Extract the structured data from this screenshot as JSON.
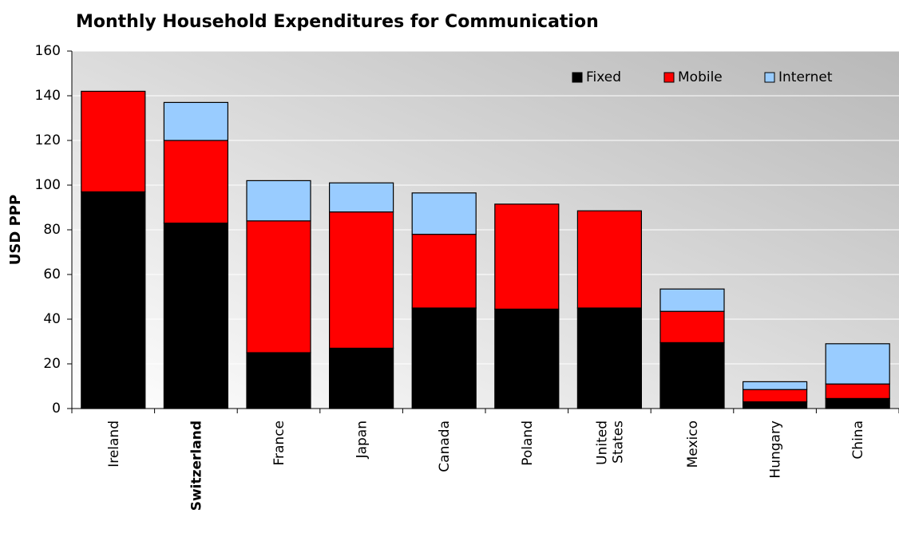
{
  "chart_data": {
    "type": "stacked_bar",
    "title": "Monthly Household Expenditures for Communication",
    "y_label": "USD PPP",
    "categories": [
      "Ireland",
      "Switzerland",
      "France",
      "Japan",
      "Canada",
      "Poland",
      "United States",
      "Mexico",
      "Hungary",
      "China"
    ],
    "highlight": "Switzerland",
    "series": [
      {
        "name": "Fixed",
        "color": "#000000",
        "values": [
          97,
          83,
          25,
          27,
          45,
          44.5,
          45,
          29.5,
          3,
          4.5
        ]
      },
      {
        "name": "Mobile",
        "color": "#ff0000",
        "values": [
          45,
          37,
          59,
          61,
          33,
          47,
          43.5,
          14,
          5.5,
          6.5
        ]
      },
      {
        "name": "Internet",
        "color": "#99ccff",
        "values": [
          0,
          17,
          18,
          13,
          18.5,
          0,
          0,
          10,
          3.5,
          18
        ]
      }
    ],
    "ylim": [
      0,
      160
    ],
    "yticks": [
      0,
      20,
      40,
      60,
      80,
      100,
      120,
      140,
      160
    ],
    "grid": true,
    "legend": "upper right"
  }
}
